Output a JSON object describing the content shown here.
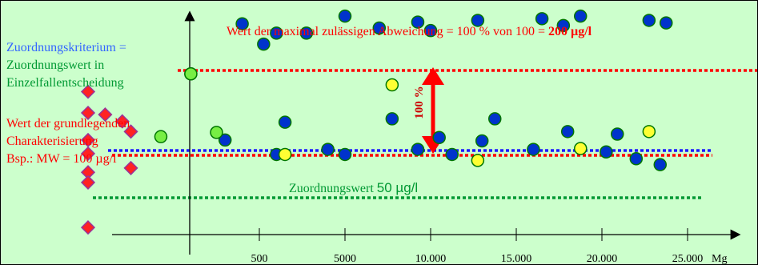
{
  "chart_data": {
    "type": "scatter",
    "x_tick_labels": [
      "500",
      "5000",
      "10.000",
      "15.000",
      "20.000",
      "25.000"
    ],
    "x_unit": "Mg",
    "annotations": {
      "criterion_lines": [
        "Zuordnungskriterium =",
        "Zuordnungswert in",
        "Einzelfallentscheidung"
      ],
      "baseline_lines": [
        "Wert der grundlegenden",
        "Charakterisierung",
        "Bsp.: MW = 100 µg/l"
      ],
      "max_prefix": "Wert der maximal zulässigen Abweichung = 100 % von 100 = ",
      "max_bold": "200 µg/l",
      "deviation_label": "100 %",
      "zw_prefix": "Zuordnungswert ",
      "zw_value": "50 µg/l"
    },
    "reference_lines": [
      {
        "value": 200,
        "color": "#ff0000"
      },
      {
        "value": 100,
        "color": "#ff0000"
      },
      {
        "value": 100,
        "color": "#1a1aff"
      },
      {
        "value": 50,
        "color": "#009933"
      }
    ],
    "series": [
      {
        "marker": "diamond",
        "color": "#ff2222",
        "points": [
          {
            "x": -1,
            "y": 175
          },
          {
            "x": -1,
            "y": 150
          },
          {
            "x": -0.8,
            "y": 148
          },
          {
            "x": -0.6,
            "y": 140
          },
          {
            "x": -0.5,
            "y": 128
          },
          {
            "x": -1,
            "y": 118
          },
          {
            "x": -1,
            "y": 102
          },
          {
            "x": -0.5,
            "y": 85
          },
          {
            "x": -1,
            "y": 80
          },
          {
            "x": -1,
            "y": 68
          },
          {
            "x": -1,
            "y": 15
          }
        ]
      },
      {
        "marker": "circle",
        "color": "#0033cc",
        "points": [
          {
            "x": 0.8,
            "y": 255
          },
          {
            "x": 1.05,
            "y": 231
          },
          {
            "x": 1.2,
            "y": 244
          },
          {
            "x": 1.55,
            "y": 244
          },
          {
            "x": 2.0,
            "y": 264
          },
          {
            "x": 2.4,
            "y": 250
          },
          {
            "x": 2.85,
            "y": 257
          },
          {
            "x": 3.0,
            "y": 247
          },
          {
            "x": 3.55,
            "y": 259
          },
          {
            "x": 4.3,
            "y": 261
          },
          {
            "x": 4.55,
            "y": 253
          },
          {
            "x": 4.75,
            "y": 264
          },
          {
            "x": 5.55,
            "y": 259
          },
          {
            "x": 5.75,
            "y": 256
          },
          {
            "x": 0.6,
            "y": 118
          },
          {
            "x": 1.2,
            "y": 101
          },
          {
            "x": 1.3,
            "y": 139
          },
          {
            "x": 1.8,
            "y": 107
          },
          {
            "x": 2.0,
            "y": 101
          },
          {
            "x": 2.55,
            "y": 143
          },
          {
            "x": 2.85,
            "y": 107
          },
          {
            "x": 3.25,
            "y": 101
          },
          {
            "x": 3.6,
            "y": 117
          },
          {
            "x": 3.75,
            "y": 143
          },
          {
            "x": 4.2,
            "y": 107
          },
          {
            "x": 4.6,
            "y": 128
          },
          {
            "x": 5.05,
            "y": 104
          },
          {
            "x": 5.18,
            "y": 125
          },
          {
            "x": 5.4,
            "y": 96
          },
          {
            "x": 5.68,
            "y": 89
          },
          {
            "x": 3.1,
            "y": 121
          }
        ]
      },
      {
        "marker": "circle",
        "color": "#ffff33",
        "points": [
          {
            "x": 0.2,
            "y": 196
          },
          {
            "x": 1.3,
            "y": 101
          },
          {
            "x": 2.55,
            "y": 183
          },
          {
            "x": 3.55,
            "y": 94
          },
          {
            "x": 4.75,
            "y": 108
          },
          {
            "x": 5.55,
            "y": 128
          },
          {
            "x": 7.2,
            "y": 184
          }
        ]
      },
      {
        "marker": "circle",
        "color": "#77ee44",
        "points": [
          {
            "x": 0.2,
            "y": 196
          },
          {
            "x": -0.15,
            "y": 122
          },
          {
            "x": 0.5,
            "y": 127
          }
        ]
      }
    ]
  }
}
